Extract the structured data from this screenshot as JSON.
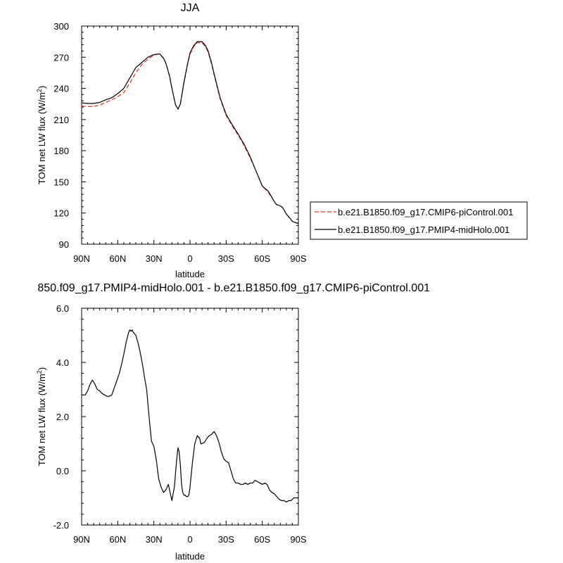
{
  "chart_data": [
    {
      "type": "line",
      "title": "JJA",
      "xlabel": "latitude",
      "ylabel_main": "TOM net LW flux (W/m",
      "ylabel_sup": "2",
      "ylabel_tail": ")",
      "xlim": [
        -90,
        90
      ],
      "ylim": [
        90,
        300
      ],
      "xticks": [
        -90,
        -60,
        -30,
        0,
        30,
        60,
        90
      ],
      "xtick_labels": [
        "90N",
        "60N",
        "30N",
        "0",
        "30S",
        "60S",
        "90S"
      ],
      "yticks": [
        90,
        120,
        150,
        180,
        210,
        240,
        270,
        300
      ],
      "ytick_labels": [
        "90",
        "120",
        "150",
        "180",
        "210",
        "240",
        "270",
        "300"
      ],
      "legend_position": "right",
      "series": [
        {
          "name": "b.e21.B1850.f09_g17.CMIP6-piControl.001",
          "color": "#e0302a",
          "dash": "dashed",
          "x": [
            -90,
            -85,
            -80,
            -75,
            -70,
            -65,
            -60,
            -55,
            -50,
            -45,
            -40,
            -35,
            -30,
            -27,
            -25,
            -22,
            -20,
            -17,
            -15,
            -13,
            -12,
            -10,
            -8,
            -5,
            -2,
            0,
            3,
            6,
            10,
            13,
            15,
            18,
            20,
            25,
            30,
            35,
            40,
            45,
            50,
            55,
            60,
            65,
            68,
            70,
            72,
            75,
            77,
            80,
            83,
            85,
            87,
            90
          ],
          "y": [
            223,
            222.5,
            222.5,
            224,
            226.5,
            229,
            232,
            236,
            245,
            255,
            263,
            268,
            272,
            273,
            273,
            269,
            264,
            252,
            240,
            229,
            224,
            220,
            225,
            245,
            263,
            273,
            280,
            284,
            284,
            280,
            275,
            263,
            253,
            230,
            214,
            204,
            195,
            185,
            173,
            160,
            146,
            140,
            135,
            131,
            128,
            127,
            125,
            119,
            115,
            112,
            111,
            110
          ]
        },
        {
          "name": "b.e21.B1850.f09_g17.PMIP4-midHolo.001",
          "color": "#000000",
          "dash": "solid",
          "x": [
            -90,
            -85,
            -80,
            -75,
            -70,
            -65,
            -60,
            -55,
            -50,
            -45,
            -40,
            -35,
            -30,
            -27,
            -25,
            -22,
            -20,
            -17,
            -15,
            -13,
            -12,
            -10,
            -8,
            -5,
            -2,
            0,
            3,
            6,
            10,
            13,
            15,
            18,
            20,
            25,
            30,
            35,
            40,
            45,
            50,
            55,
            60,
            65,
            68,
            70,
            72,
            75,
            77,
            80,
            83,
            85,
            87,
            90
          ],
          "y": [
            226,
            225.5,
            225.5,
            226.5,
            229,
            231,
            235,
            240,
            250,
            260,
            265,
            270,
            272.5,
            273,
            273,
            269,
            264,
            252,
            240,
            229,
            224,
            220,
            225,
            246,
            264,
            274,
            281,
            285,
            285,
            281,
            276,
            264,
            254,
            231,
            215,
            205,
            196,
            186,
            174,
            160,
            146,
            141,
            135,
            131,
            128,
            127,
            125,
            119,
            115,
            112,
            111,
            110
          ]
        }
      ]
    },
    {
      "type": "line",
      "title": "850.f09_g17.PMIP4-midHolo.001 - b.e21.B1850.f09_g17.CMIP6-piControl.001",
      "xlabel": "latitude",
      "ylabel_main": "TOM net LW flux (W/m",
      "ylabel_sup": "2",
      "ylabel_tail": ")",
      "xlim": [
        -90,
        90
      ],
      "ylim": [
        -2,
        6
      ],
      "xticks": [
        -90,
        -60,
        -30,
        0,
        30,
        60,
        90
      ],
      "xtick_labels": [
        "90N",
        "60N",
        "30N",
        "0",
        "30S",
        "60S",
        "90S"
      ],
      "yticks": [
        -2,
        0,
        2,
        4,
        6
      ],
      "ytick_labels": [
        "-2.0",
        "0.0",
        "2.0",
        "4.0",
        "6.0"
      ],
      "series": [
        {
          "color": "#000000",
          "dash": "solid",
          "x": [
            -90,
            -87,
            -85,
            -83,
            -81,
            -79,
            -77,
            -75,
            -73,
            -71,
            -69,
            -67,
            -65,
            -63,
            -61,
            -59,
            -57,
            -55,
            -53,
            -51,
            -50,
            -49,
            -48,
            -47,
            -45,
            -43,
            -41,
            -39,
            -38,
            -36,
            -34,
            -32,
            -30,
            -28,
            -26,
            -24,
            -22,
            -20,
            -18,
            -16,
            -15,
            -13,
            -12,
            -11,
            -10,
            -9,
            -8,
            -7,
            -6,
            -5,
            -4,
            -3,
            -2,
            -1,
            0,
            2,
            4,
            6,
            8,
            9,
            10,
            12,
            14,
            16,
            18,
            20,
            22,
            24,
            26,
            28,
            30,
            32,
            34,
            36,
            38,
            40,
            42,
            44,
            46,
            48,
            50,
            52,
            54,
            56,
            58,
            60,
            62,
            64,
            66,
            68,
            70,
            72,
            74,
            76,
            78,
            80,
            82,
            84,
            86,
            88,
            90
          ],
          "y": [
            2.8,
            2.8,
            2.95,
            3.2,
            3.35,
            3.2,
            3.0,
            2.95,
            2.85,
            2.8,
            2.75,
            2.75,
            2.8,
            3.05,
            3.3,
            3.55,
            3.9,
            4.3,
            4.75,
            5.1,
            5.2,
            5.15,
            5.2,
            5.1,
            5.0,
            4.7,
            4.3,
            3.8,
            3.5,
            3.0,
            2.0,
            1.1,
            0.9,
            0.4,
            -0.3,
            -0.6,
            -0.8,
            -0.7,
            -0.5,
            -0.9,
            -1.1,
            -0.6,
            -0.05,
            0.45,
            0.85,
            0.7,
            0.2,
            -0.5,
            -0.8,
            -0.9,
            -0.9,
            -0.95,
            -0.95,
            -0.9,
            -0.6,
            0.3,
            1.0,
            1.3,
            1.2,
            1.0,
            1.0,
            1.05,
            1.2,
            1.3,
            1.35,
            1.45,
            1.3,
            1.05,
            0.7,
            0.45,
            0.35,
            0.3,
            0.0,
            -0.3,
            -0.45,
            -0.45,
            -0.5,
            -0.5,
            -0.45,
            -0.5,
            -0.45,
            -0.45,
            -0.35,
            -0.4,
            -0.45,
            -0.5,
            -0.45,
            -0.5,
            -0.7,
            -0.8,
            -0.85,
            -0.95,
            -1.05,
            -1.1,
            -1.1,
            -1.15,
            -1.1,
            -1.1,
            -1.0,
            -1.0,
            -1.0
          ]
        }
      ]
    }
  ]
}
